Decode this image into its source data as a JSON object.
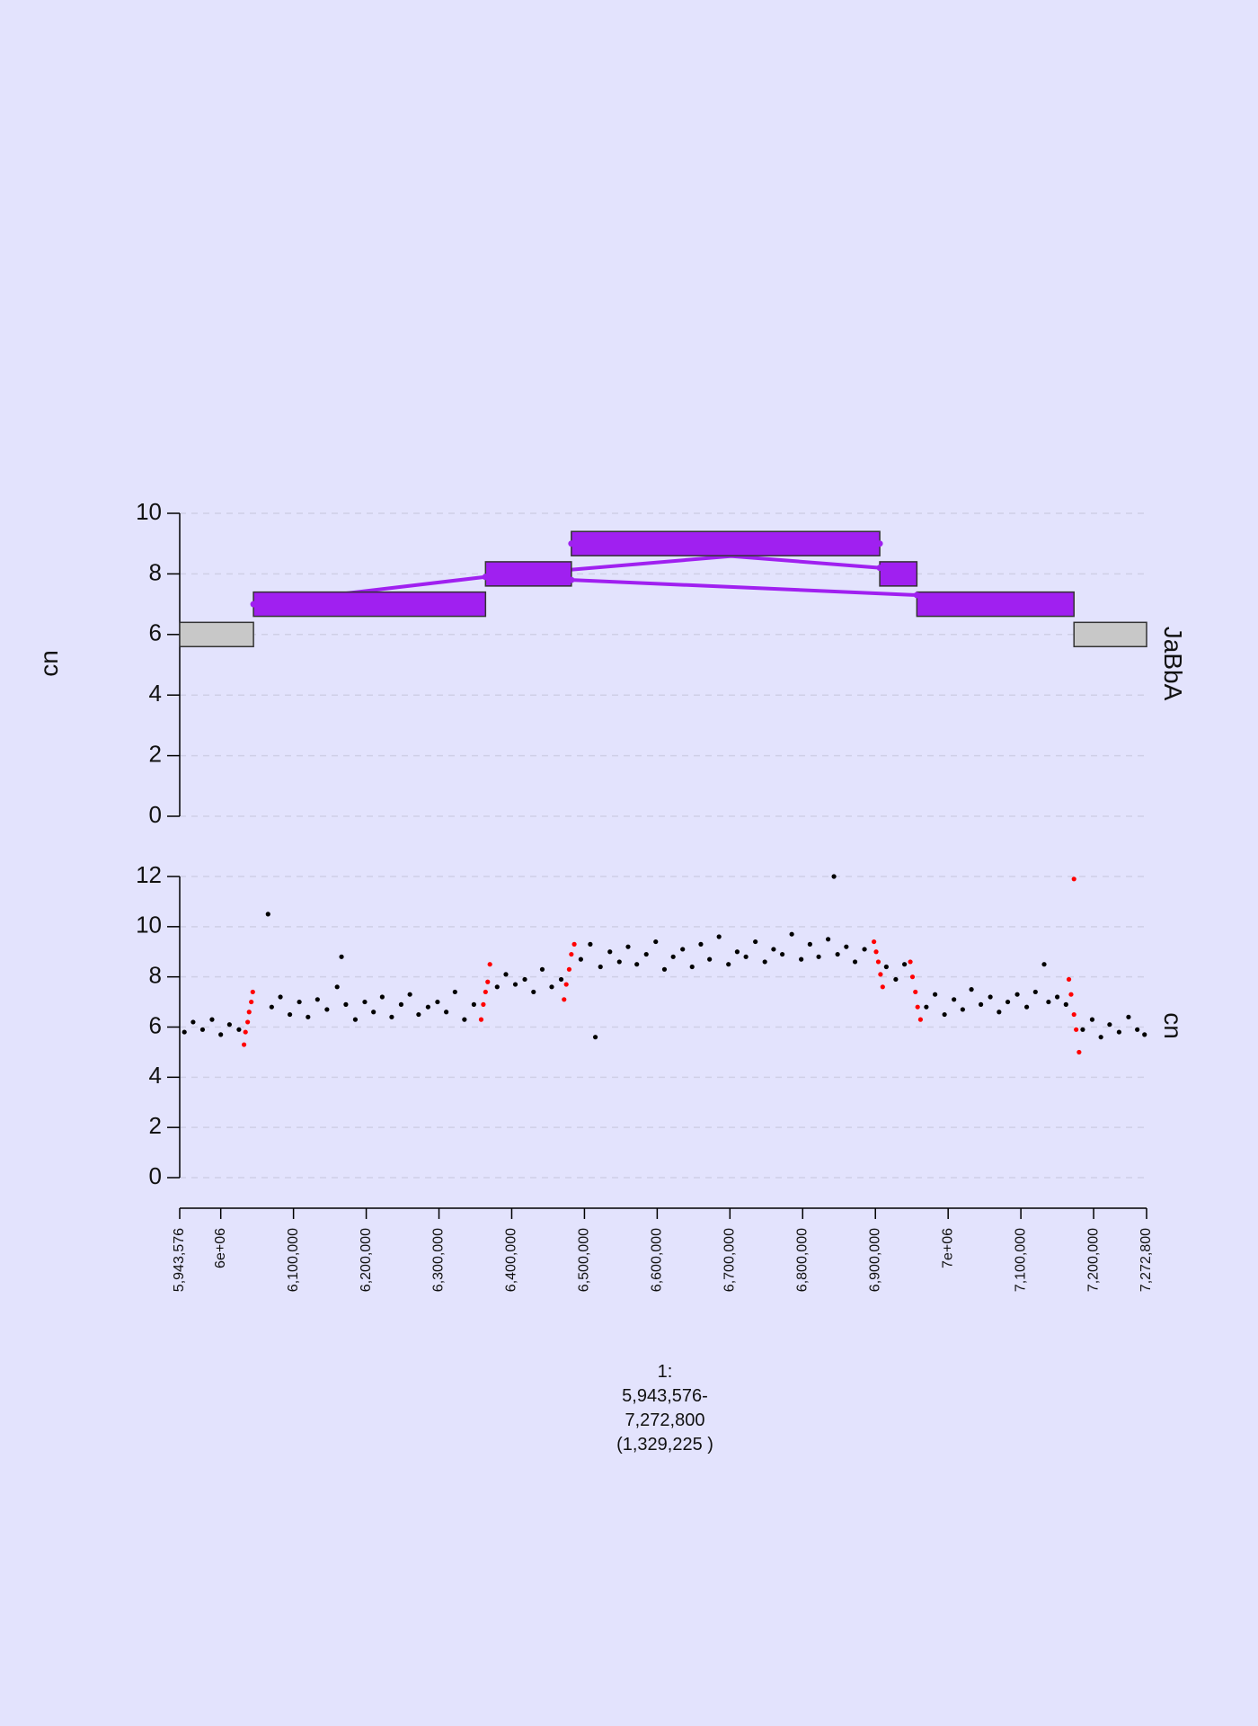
{
  "chart_data": [
    {
      "type": "segment",
      "ylabel": "cn",
      "track_label": "JaBbA",
      "xlim": [
        5943576,
        7272800
      ],
      "ylim": [
        0,
        10
      ],
      "yticks": [
        0,
        2,
        4,
        6,
        8,
        10
      ],
      "grid": true,
      "segments": [
        {
          "start": 5943576,
          "end": 6045000,
          "value": 6,
          "color": "#c8c8c8"
        },
        {
          "start": 6045000,
          "end": 6364000,
          "value": 7,
          "color": "#a020f0"
        },
        {
          "start": 6364000,
          "end": 6482000,
          "value": 8,
          "color": "#a020f0"
        },
        {
          "start": 6482000,
          "end": 6906000,
          "value": 9,
          "color": "#a020f0"
        },
        {
          "start": 6906000,
          "end": 6957000,
          "value": 8,
          "color": "#a020f0"
        },
        {
          "start": 6957000,
          "end": 7173000,
          "value": 7,
          "color": "#a020f0"
        },
        {
          "start": 7173000,
          "end": 7272800,
          "value": 6,
          "color": "#c8c8c8"
        }
      ],
      "edge_color": "#a020f0",
      "edges": [
        {
          "x": [
            6045000,
            6364000
          ],
          "y": [
            7,
            7.9
          ]
        },
        {
          "x": [
            6364000,
            6906000
          ],
          "y": [
            7.9,
            9
          ]
        },
        {
          "x": [
            6482000,
            6906000
          ],
          "y": [
            9,
            8.2
          ]
        },
        {
          "x": [
            6482000,
            6957000
          ],
          "y": [
            7.8,
            7.3
          ]
        }
      ]
    },
    {
      "type": "scatter",
      "track_label": "cn",
      "xlim": [
        5943576,
        7272800
      ],
      "ylim": [
        0,
        12
      ],
      "yticks": [
        0,
        2,
        4,
        6,
        8,
        10,
        12
      ],
      "grid": true,
      "xticks": [
        {
          "value": 5943576,
          "label": "5,943,576"
        },
        {
          "value": 6000000,
          "label": "6e+06"
        },
        {
          "value": 6100000,
          "label": "6,100,000"
        },
        {
          "value": 6200000,
          "label": "6,200,000"
        },
        {
          "value": 6300000,
          "label": "6,300,000"
        },
        {
          "value": 6400000,
          "label": "6,400,000"
        },
        {
          "value": 6500000,
          "label": "6,500,000"
        },
        {
          "value": 6600000,
          "label": "6,600,000"
        },
        {
          "value": 6700000,
          "label": "6,700,000"
        },
        {
          "value": 6800000,
          "label": "6,800,000"
        },
        {
          "value": 6900000,
          "label": "6,900,000"
        },
        {
          "value": 7000000,
          "label": "7e+06"
        },
        {
          "value": 7100000,
          "label": "7,100,000"
        },
        {
          "value": 7200000,
          "label": "7,200,000"
        },
        {
          "value": 7272800,
          "label": "7,272,800"
        }
      ],
      "xlabel_lines": [
        "1:",
        "5,943,576-",
        "7,272,800",
        "(1,329,225 )"
      ],
      "series": [
        {
          "color": "#000000",
          "x": [
            5950000,
            5962000,
            5975000,
            5988000,
            6000000,
            6012000,
            6025000,
            6065000,
            6070000,
            6082000,
            6095000,
            6108000,
            6120000,
            6133000,
            6146000,
            6160000,
            6166000,
            6172000,
            6185000,
            6198000,
            6210000,
            6222000,
            6235000,
            6248000,
            6260000,
            6272000,
            6285000,
            6298000,
            6310000,
            6322000,
            6335000,
            6348000,
            6380000,
            6392000,
            6405000,
            6418000,
            6430000,
            6442000,
            6455000,
            6468000,
            6495000,
            6508000,
            6515000,
            6522000,
            6535000,
            6548000,
            6560000,
            6572000,
            6585000,
            6598000,
            6610000,
            6622000,
            6635000,
            6648000,
            6660000,
            6672000,
            6685000,
            6698000,
            6710000,
            6722000,
            6735000,
            6748000,
            6760000,
            6772000,
            6785000,
            6798000,
            6810000,
            6822000,
            6835000,
            6843000,
            6848000,
            6860000,
            6872000,
            6885000,
            6915000,
            6928000,
            6940000,
            6970000,
            6982000,
            6995000,
            7008000,
            7020000,
            7032000,
            7045000,
            7058000,
            7070000,
            7082000,
            7095000,
            7108000,
            7120000,
            7132000,
            7138000,
            7150000,
            7162000,
            7185000,
            7198000,
            7210000,
            7222000,
            7235000,
            7248000,
            7260000,
            7270000
          ],
          "y": [
            5.8,
            6.2,
            5.9,
            6.3,
            5.7,
            6.1,
            5.9,
            10.5,
            6.8,
            7.2,
            6.5,
            7.0,
            6.4,
            7.1,
            6.7,
            7.6,
            8.8,
            6.9,
            6.3,
            7.0,
            6.6,
            7.2,
            6.4,
            6.9,
            7.3,
            6.5,
            6.8,
            7.0,
            6.6,
            7.4,
            6.3,
            6.9,
            7.6,
            8.1,
            7.7,
            7.9,
            7.4,
            8.3,
            7.6,
            7.9,
            8.7,
            9.3,
            5.6,
            8.4,
            9.0,
            8.6,
            9.2,
            8.5,
            8.9,
            9.4,
            8.3,
            8.8,
            9.1,
            8.4,
            9.3,
            8.7,
            9.6,
            8.5,
            9.0,
            8.8,
            9.4,
            8.6,
            9.1,
            8.9,
            9.7,
            8.7,
            9.3,
            8.8,
            9.5,
            12.0,
            8.9,
            9.2,
            8.6,
            9.1,
            8.4,
            7.9,
            8.5,
            6.8,
            7.3,
            6.5,
            7.1,
            6.7,
            7.5,
            6.9,
            7.2,
            6.6,
            7.0,
            7.3,
            6.8,
            7.4,
            8.5,
            7.0,
            7.2,
            6.9,
            5.9,
            6.3,
            5.6,
            6.1,
            5.8,
            6.4,
            5.9,
            5.7
          ]
        },
        {
          "color": "#ff0000",
          "x": [
            6032000,
            6034000,
            6037000,
            6039000,
            6042000,
            6044000,
            6358000,
            6361000,
            6364000,
            6367000,
            6370000,
            6472000,
            6475000,
            6479000,
            6482000,
            6486000,
            6898000,
            6901000,
            6904000,
            6907000,
            6910000,
            6948000,
            6951000,
            6955000,
            6958000,
            6962000,
            7166000,
            7169000,
            7173000,
            7173000,
            7176000,
            7180000
          ],
          "y": [
            5.3,
            5.8,
            6.2,
            6.6,
            7.0,
            7.4,
            6.3,
            6.9,
            7.4,
            7.8,
            8.5,
            7.1,
            7.7,
            8.3,
            8.9,
            9.3,
            9.4,
            9.0,
            8.6,
            8.1,
            7.6,
            8.6,
            8.0,
            7.4,
            6.8,
            6.3,
            7.9,
            7.3,
            6.5,
            11.9,
            5.9,
            5.0
          ]
        }
      ]
    }
  ]
}
